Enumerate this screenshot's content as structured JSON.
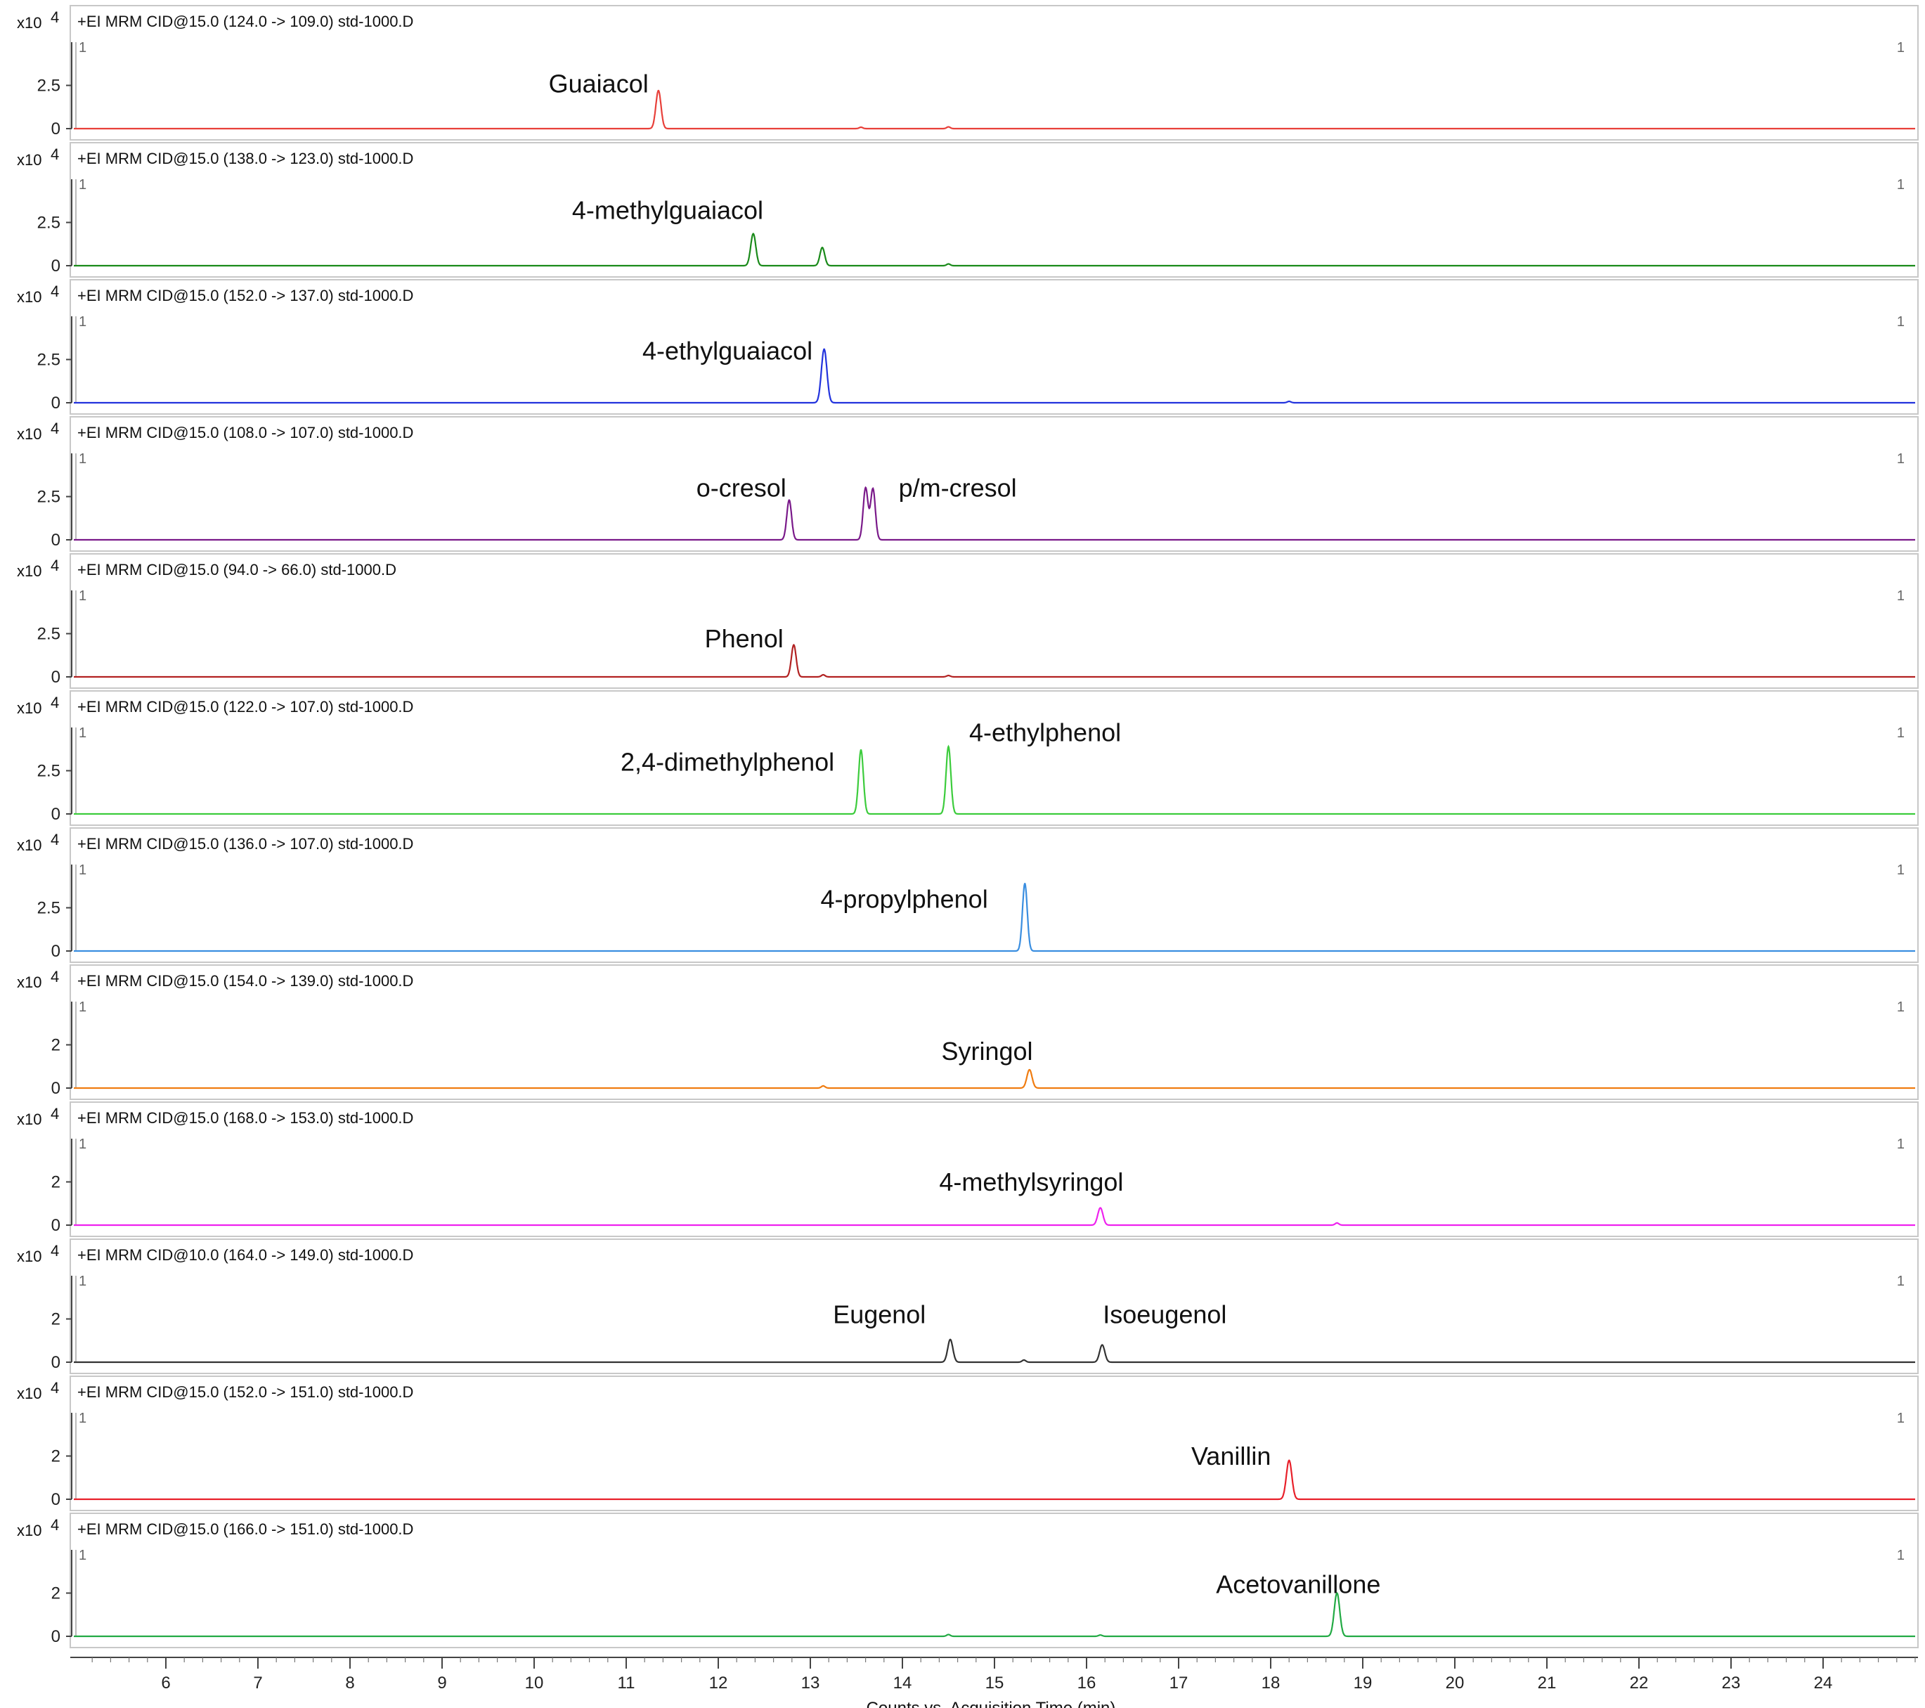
{
  "chart_data": {
    "type": "line",
    "xlabel": "Counts vs. Acquisition Time (min)",
    "xlim": [
      5,
      25
    ],
    "x_ticks": [
      "6",
      "7",
      "8",
      "9",
      "10",
      "11",
      "12",
      "13",
      "14",
      "15",
      "16",
      "17",
      "18",
      "19",
      "20",
      "21",
      "22",
      "23",
      "24"
    ],
    "y_scale_label": "x10",
    "y_scale_exp": "4",
    "marker_one": "1",
    "panels": [
      {
        "header": "+EI MRM CID@15.0 (124.0 -> 109.0) std-1000.D",
        "color": "#e8403a",
        "ymax": 5,
        "y_ticks": [
          "0",
          "2.5"
        ],
        "peaks": [
          {
            "rt": 11.35,
            "h": 2.2,
            "w": 0.028
          },
          {
            "rt": 13.55,
            "h": 0.08,
            "w": 0.02
          },
          {
            "rt": 14.5,
            "h": 0.1,
            "w": 0.02
          }
        ],
        "labels": [
          {
            "text": "Guaiacol",
            "rt": 10.7,
            "y": 2.1
          }
        ]
      },
      {
        "header": "+EI MRM CID@15.0 (138.0 -> 123.0) std-1000.D",
        "color": "#1a8a1a",
        "ymax": 5,
        "y_ticks": [
          "0",
          "2.5"
        ],
        "peaks": [
          {
            "rt": 12.38,
            "h": 1.85,
            "w": 0.028
          },
          {
            "rt": 13.13,
            "h": 1.05,
            "w": 0.026
          },
          {
            "rt": 14.5,
            "h": 0.1,
            "w": 0.02
          }
        ],
        "labels": [
          {
            "text": "4-methylguaiacol",
            "rt": 11.45,
            "y": 2.7
          }
        ]
      },
      {
        "header": "+EI MRM CID@15.0 (152.0 -> 137.0) std-1000.D",
        "color": "#2233dd",
        "ymax": 5,
        "y_ticks": [
          "0",
          "2.5"
        ],
        "peaks": [
          {
            "rt": 13.15,
            "h": 3.1,
            "w": 0.03
          },
          {
            "rt": 18.2,
            "h": 0.08,
            "w": 0.02
          }
        ],
        "labels": [
          {
            "text": "4-ethylguaiacol",
            "rt": 12.1,
            "y": 2.5
          }
        ]
      },
      {
        "header": "+EI MRM CID@15.0 (108.0 -> 107.0) std-1000.D",
        "color": "#7a1a8a",
        "ymax": 5,
        "y_ticks": [
          "0",
          "2.5"
        ],
        "peaks": [
          {
            "rt": 12.77,
            "h": 2.3,
            "w": 0.026
          },
          {
            "rt": 13.6,
            "h": 3.0,
            "w": 0.026
          },
          {
            "rt": 13.68,
            "h": 2.95,
            "w": 0.026
          }
        ],
        "labels": [
          {
            "text": "o-cresol",
            "rt": 12.25,
            "y": 2.5
          },
          {
            "text": "p/m-cresol",
            "rt": 14.6,
            "y": 2.5
          }
        ]
      },
      {
        "header": "+EI MRM CID@15.0 (94.0 -> 66.0) std-1000.D",
        "color": "#b22222",
        "ymax": 5,
        "y_ticks": [
          "0",
          "2.5"
        ],
        "peaks": [
          {
            "rt": 12.82,
            "h": 1.85,
            "w": 0.026
          },
          {
            "rt": 13.14,
            "h": 0.12,
            "w": 0.02
          },
          {
            "rt": 14.5,
            "h": 0.08,
            "w": 0.02
          }
        ],
        "labels": [
          {
            "text": "Phenol",
            "rt": 12.28,
            "y": 1.7
          }
        ]
      },
      {
        "header": "+EI MRM CID@15.0 (122.0 -> 107.0) std-1000.D",
        "color": "#3ccc3c",
        "ymax": 5,
        "y_ticks": [
          "0",
          "2.5"
        ],
        "peaks": [
          {
            "rt": 13.55,
            "h": 3.7,
            "w": 0.026
          },
          {
            "rt": 14.5,
            "h": 3.9,
            "w": 0.026
          }
        ],
        "labels": [
          {
            "text": "2,4-dimethylphenol",
            "rt": 12.1,
            "y": 2.5
          },
          {
            "text": "4-ethylphenol",
            "rt": 15.55,
            "y": 4.2
          }
        ]
      },
      {
        "header": "+EI MRM CID@15.0 (136.0 -> 107.0) std-1000.D",
        "color": "#3a8ee0",
        "ymax": 5,
        "y_ticks": [
          "0",
          "2.5"
        ],
        "peaks": [
          {
            "rt": 15.33,
            "h": 3.9,
            "w": 0.026
          }
        ],
        "labels": [
          {
            "text": "4-propylphenol",
            "rt": 14.02,
            "y": 2.5
          }
        ]
      },
      {
        "header": "+EI MRM CID@15.0 (154.0 -> 139.0) std-1000.D",
        "color": "#f07c10",
        "ymax": 4,
        "y_ticks": [
          "0",
          "2"
        ],
        "peaks": [
          {
            "rt": 15.38,
            "h": 0.85,
            "w": 0.028
          },
          {
            "rt": 13.14,
            "h": 0.1,
            "w": 0.02
          }
        ],
        "labels": [
          {
            "text": "Syringol",
            "rt": 14.92,
            "y": 1.3
          }
        ]
      },
      {
        "header": "+EI MRM CID@15.0 (168.0 -> 153.0) std-1000.D",
        "color": "#ee22ee",
        "ymax": 4,
        "y_ticks": [
          "0",
          "2"
        ],
        "peaks": [
          {
            "rt": 16.15,
            "h": 0.8,
            "w": 0.028
          },
          {
            "rt": 18.72,
            "h": 0.1,
            "w": 0.02
          }
        ],
        "labels": [
          {
            "text": "4-methylsyringol",
            "rt": 15.4,
            "y": 1.6
          }
        ]
      },
      {
        "header": "+EI MRM CID@10.0 (164.0 -> 149.0) std-1000.D",
        "color": "#333333",
        "ymax": 4,
        "y_ticks": [
          "0",
          "2"
        ],
        "peaks": [
          {
            "rt": 14.52,
            "h": 1.05,
            "w": 0.028
          },
          {
            "rt": 16.17,
            "h": 0.8,
            "w": 0.028
          },
          {
            "rt": 15.32,
            "h": 0.1,
            "w": 0.02
          }
        ],
        "labels": [
          {
            "text": "Eugenol",
            "rt": 13.75,
            "y": 1.8
          },
          {
            "text": "Isoeugenol",
            "rt": 16.85,
            "y": 1.8
          }
        ]
      },
      {
        "header": "+EI MRM CID@15.0 (152.0 -> 151.0) std-1000.D",
        "color": "#e8202a",
        "ymax": 4,
        "y_ticks": [
          "0",
          "2"
        ],
        "peaks": [
          {
            "rt": 18.2,
            "h": 1.8,
            "w": 0.03
          }
        ],
        "labels": [
          {
            "text": "Vanillin",
            "rt": 17.57,
            "y": 1.6
          }
        ]
      },
      {
        "header": "+EI MRM CID@15.0 (166.0 -> 151.0) std-1000.D",
        "color": "#22aa44",
        "ymax": 4,
        "y_ticks": [
          "0",
          "2"
        ],
        "peaks": [
          {
            "rt": 18.72,
            "h": 2.0,
            "w": 0.03
          },
          {
            "rt": 14.5,
            "h": 0.08,
            "w": 0.02
          },
          {
            "rt": 16.15,
            "h": 0.06,
            "w": 0.02
          }
        ],
        "labels": [
          {
            "text": "Acetovanillone",
            "rt": 18.3,
            "y": 2.0
          }
        ]
      }
    ]
  }
}
